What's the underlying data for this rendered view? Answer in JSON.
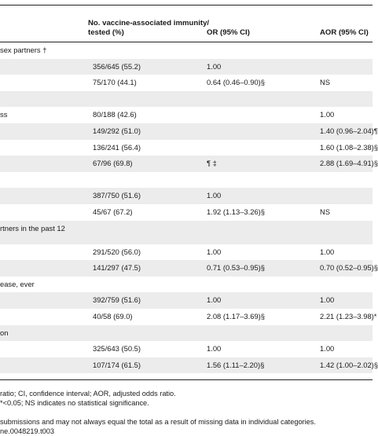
{
  "header": {
    "col2_line1": "No. vaccine-associated immunity/",
    "col2_line2": "tested (%)",
    "col3": "OR (95% CI)",
    "col4": "AOR (95% CI)"
  },
  "rows": [
    {
      "type": "group",
      "c1": "sex partners †",
      "c2": "",
      "c3": "",
      "c4": ""
    },
    {
      "type": "data",
      "c1": "",
      "c2": "356/645 (55.2)",
      "c3": "1.00",
      "c4": ""
    },
    {
      "type": "data",
      "c1": "",
      "c2": "75/170 (44.1)",
      "c3": "0.64 (0.46–0.90)§",
      "c4": "NS"
    },
    {
      "type": "group",
      "c1": "",
      "c2": "",
      "c3": "",
      "c4": ""
    },
    {
      "type": "data",
      "c1": "ss",
      "c2": "80/188 (42.6)",
      "c3": "",
      "c4": "1.00"
    },
    {
      "type": "data",
      "c1": "",
      "c2": "149/292 (51.0)",
      "c3": "",
      "c4": "1.40 (0.96–2.04)¶"
    },
    {
      "type": "data",
      "c1": "",
      "c2": "136/241 (56.4)",
      "c3": "",
      "c4": "1.60 (1.08–2.38)§"
    },
    {
      "type": "data",
      "c1": "",
      "c2": "67/96 (69.8)",
      "c3": "¶ ‡",
      "c4": "2.88 (1.69–4.91)§"
    },
    {
      "type": "group",
      "c1": "",
      "c2": "",
      "c3": "",
      "c4": ""
    },
    {
      "type": "data",
      "c1": "",
      "c2": "387/750 (51.6)",
      "c3": "1.00",
      "c4": ""
    },
    {
      "type": "data",
      "c1": "",
      "c2": "45/67 (67.2)",
      "c3": "1.92 (1.13–3.26)§",
      "c4": "NS"
    },
    {
      "type": "group-double",
      "c1a": "rtners in the past 12",
      "c1b": "",
      "c2": "",
      "c3": "",
      "c4": ""
    },
    {
      "type": "data",
      "c1": "",
      "c2": "291/520 (56.0)",
      "c3": "1.00",
      "c4": "1.00"
    },
    {
      "type": "data",
      "c1": "",
      "c2": "141/297 (47.5)",
      "c3": "0.71 (0.53–0.95)§",
      "c4": "0.70 (0.52–0.95)§"
    },
    {
      "type": "group",
      "c1": "ease, ever",
      "c2": "",
      "c3": "",
      "c4": ""
    },
    {
      "type": "data",
      "c1": "",
      "c2": "392/759 (51.6)",
      "c3": "1.00",
      "c4": "1.00"
    },
    {
      "type": "data",
      "c1": "",
      "c2": "40/58 (69.0)",
      "c3": "2.08 (1.17–3.69)§",
      "c4": "2.21 (1.23–3.98)*"
    },
    {
      "type": "group",
      "c1": "on",
      "c2": "",
      "c3": "",
      "c4": ""
    },
    {
      "type": "data",
      "c1": "",
      "c2": "325/643 (50.5)",
      "c3": "1.00",
      "c4": "1.00"
    },
    {
      "type": "data",
      "c1": "",
      "c2": "107/174 (61.5)",
      "c3": "1.56 (1.11–2.20)§",
      "c4": "1.42 (1.00–2.02)§"
    }
  ],
  "footnotes": [
    "ratio; CI, confidence interval; AOR, adjusted odds ratio.",
    "*<0.05; NS indicates no statistical significance.",
    "",
    " submissions and may not always equal the total as a result of missing data in individual categories.",
    "ne.0048219.t003"
  ]
}
